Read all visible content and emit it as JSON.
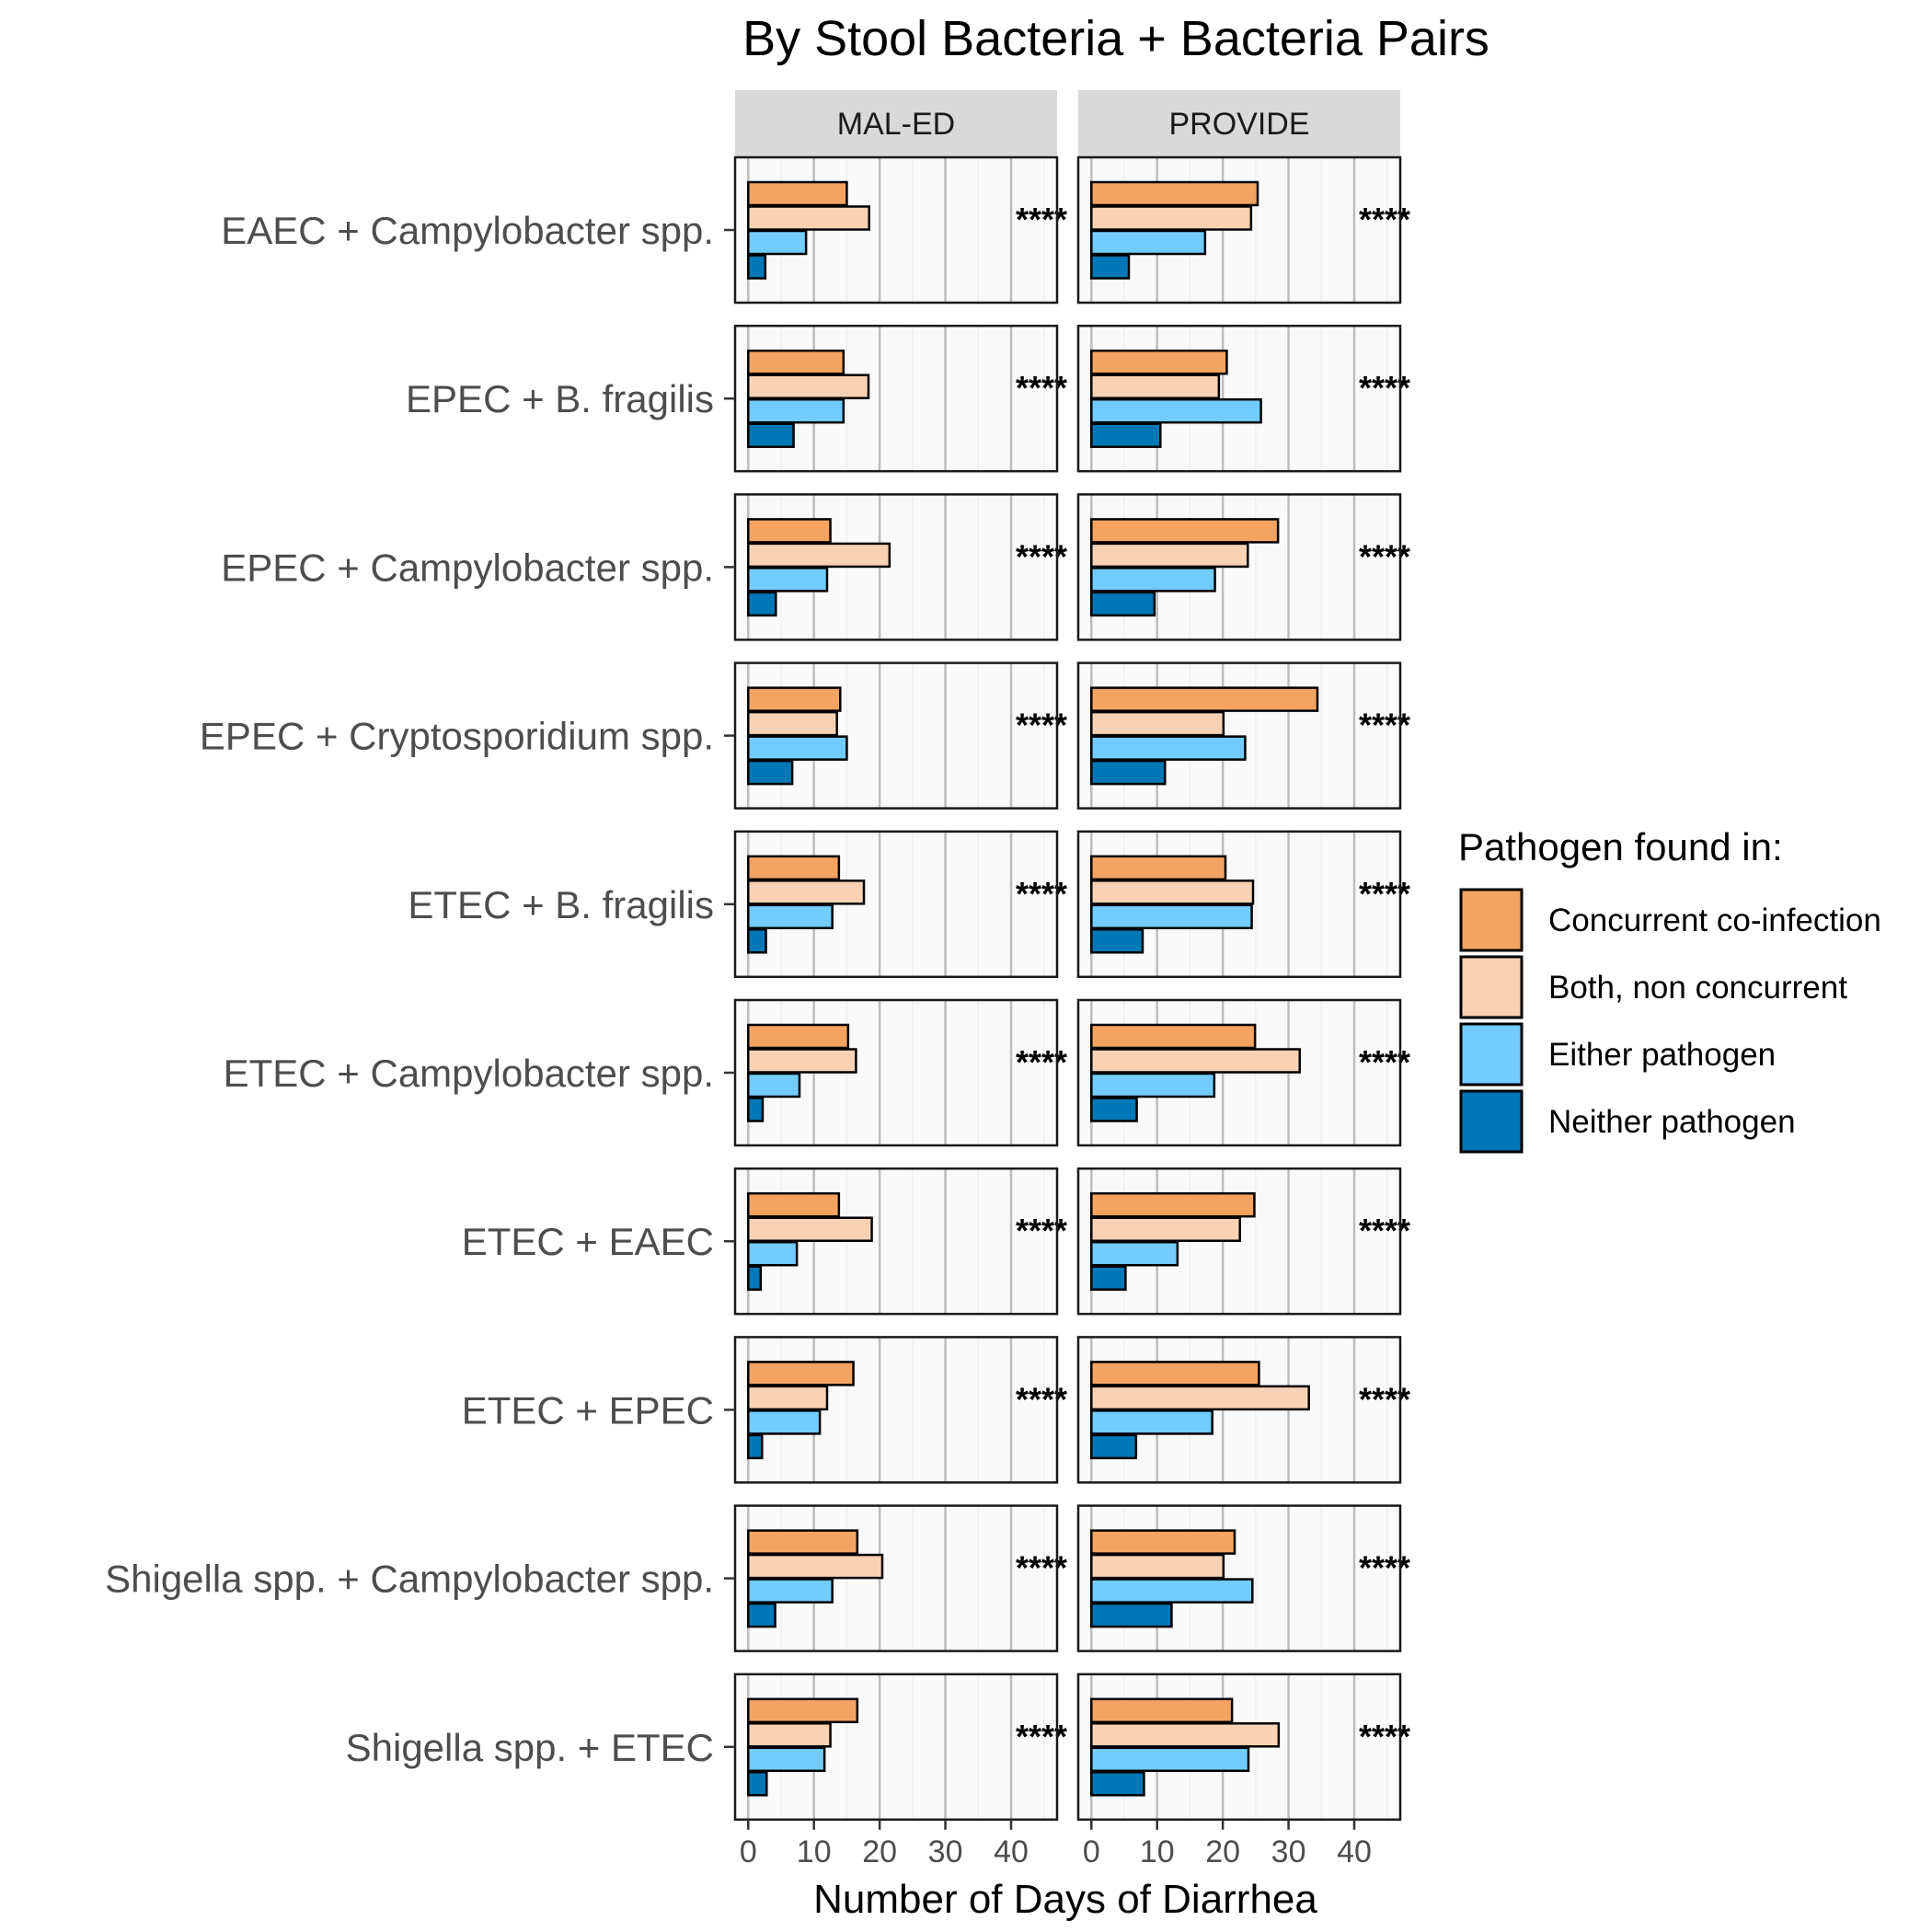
{
  "chart_data": {
    "type": "bar",
    "orientation": "horizontal",
    "title": "By Stool Bacteria + Bacteria Pairs",
    "xlabel": "Number of Days of Diarrhea",
    "xlim": [
      -2,
      47
    ],
    "xticks": [
      0,
      10,
      20,
      30,
      40
    ],
    "facets": [
      "MAL-ED",
      "PROVIDE"
    ],
    "categories": [
      "EAEC + Campylobacter spp.",
      "EPEC + B. fragilis",
      "EPEC + Campylobacter spp.",
      "EPEC + Cryptosporidium spp.",
      "ETEC + B. fragilis",
      "ETEC + Campylobacter spp.",
      "ETEC + EAEC",
      "ETEC + EPEC",
      "Shigella spp. + Campylobacter spp.",
      "Shigella spp. + ETEC"
    ],
    "significance": "****",
    "legend": {
      "title": "Pathogen found in:",
      "position": "right"
    },
    "series": [
      {
        "name": "Concurrent co-infection",
        "color": "#F4A460",
        "values": {
          "MAL-ED": [
            15,
            14.5,
            12.5,
            14,
            13.8,
            15.2,
            13.8,
            16,
            16.6,
            16.6
          ],
          "PROVIDE": [
            25.3,
            20.6,
            28.4,
            34.4,
            20.4,
            24.9,
            24.8,
            25.5,
            21.8,
            21.4
          ]
        }
      },
      {
        "name": "Both, non concurrent",
        "color": "#F9D2B4",
        "values": {
          "MAL-ED": [
            18.4,
            18.3,
            21.5,
            13.5,
            17.6,
            16.4,
            18.8,
            12,
            20.4,
            12.5
          ],
          "PROVIDE": [
            24.3,
            19.4,
            23.8,
            20.1,
            24.6,
            31.7,
            22.6,
            33.1,
            20.1,
            28.5
          ]
        }
      },
      {
        "name": "Either pathogen",
        "color": "#73CCFF",
        "values": {
          "MAL-ED": [
            8.8,
            14.5,
            12,
            15,
            12.8,
            7.8,
            7.4,
            10.9,
            12.8,
            11.6
          ],
          "PROVIDE": [
            17.3,
            25.8,
            18.8,
            23.4,
            24.4,
            18.7,
            13.1,
            18.4,
            24.5,
            23.9
          ]
        }
      },
      {
        "name": "Neither pathogen",
        "color": "#0077B6",
        "values": {
          "MAL-ED": [
            2.6,
            6.9,
            4.2,
            6.7,
            2.7,
            2.2,
            1.9,
            2.1,
            4.1,
            2.8
          ],
          "PROVIDE": [
            5.7,
            10.5,
            9.6,
            11.2,
            7.8,
            6.9,
            5.2,
            6.8,
            12.2,
            8
          ]
        }
      }
    ]
  }
}
